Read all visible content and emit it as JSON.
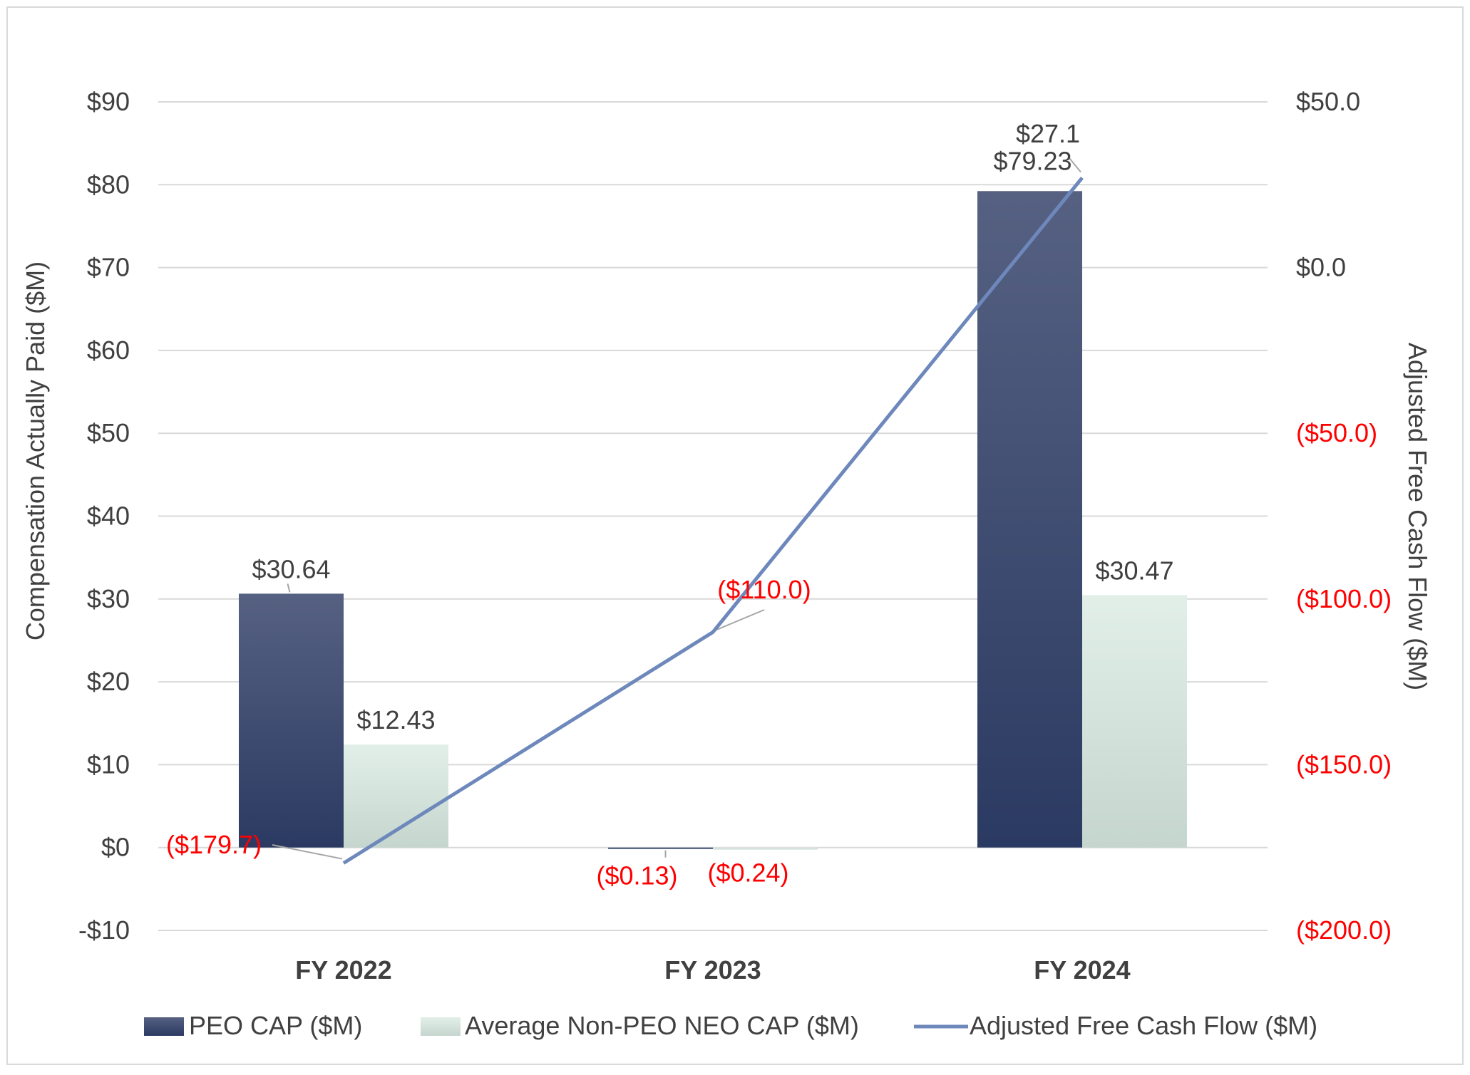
{
  "chart_data": {
    "type": "bar",
    "categories": [
      "FY 2022",
      "FY 2023",
      "FY 2024"
    ],
    "series": [
      {
        "name": "PEO CAP ($M)",
        "kind": "bar",
        "axis": "left",
        "values": [
          30.64,
          -0.13,
          79.23
        ],
        "labels": [
          "$30.64",
          "($0.13)",
          "$79.23"
        ]
      },
      {
        "name": "Average Non-PEO NEO CAP ($M)",
        "kind": "bar",
        "axis": "left",
        "values": [
          12.43,
          -0.24,
          30.47
        ],
        "labels": [
          "$12.43",
          "($0.24)",
          "$30.47"
        ]
      },
      {
        "name": "Adjusted Free Cash Flow ($M)",
        "kind": "line",
        "axis": "right",
        "values": [
          -179.7,
          -110.0,
          27.1
        ],
        "labels": [
          "($179.7)",
          "($110.0)",
          "$27.1"
        ]
      }
    ],
    "ylabel": "Compensation Actually Paid ($M)",
    "y2label": "Adjusted Free Cash Flow ($M)",
    "ylim": [
      -10,
      90
    ],
    "y2lim": [
      -200,
      50
    ],
    "yticks": [
      -10,
      0,
      10,
      20,
      30,
      40,
      50,
      60,
      70,
      80,
      90
    ],
    "ytick_labels": [
      "-$10",
      "$0",
      "$10",
      "$20",
      "$30",
      "$40",
      "$50",
      "$60",
      "$70",
      "$80",
      "$90"
    ],
    "y2ticks": [
      -200,
      -150,
      -100,
      -50,
      0,
      50
    ],
    "y2tick_labels": [
      "($200.0)",
      "($150.0)",
      "($100.0)",
      "($50.0)",
      "$0.0",
      "$50.0"
    ],
    "grid": true,
    "legend": "bottom",
    "colors": {
      "peo_top": "#566182",
      "peo_bottom": "#2b3a62",
      "neo_top": "#e2efe9",
      "neo_bottom": "#c5d6ce",
      "line": "#6e88bc",
      "negative": "#ff0000",
      "text": "#404040",
      "grid": "#d9d9d9"
    }
  }
}
